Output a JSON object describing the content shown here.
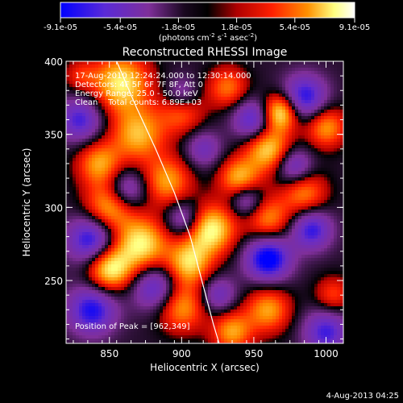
{
  "chart_data": {
    "type": "heatmap",
    "title": "Reconstructed RHESSI Image",
    "xlabel": "Heliocentric X (arcsec)",
    "ylabel": "Heliocentric Y (arcsec)",
    "xlim": [
      820,
      1012
    ],
    "ylim": [
      207,
      400
    ],
    "x_ticks": [
      850,
      900,
      950,
      1000
    ],
    "y_ticks": [
      250,
      300,
      350,
      400
    ],
    "colorbar": {
      "min": -9.1e-05,
      "max": 9.1e-05,
      "tick_labels": [
        "-9.1e-05",
        "-5.4e-05",
        "-1.8e-05",
        "1.8e-05",
        "5.4e-05",
        "9.1e-05"
      ],
      "units_label": "(photons cm",
      "units_sup1": "-2",
      "units_mid": " s",
      "units_sup2": "-1",
      "units_end": " asec",
      "units_sup3": "-2",
      "units_close": ")"
    },
    "colormap": [
      "#0000ff",
      "#6a2dc6",
      "#7f2f9a",
      "#000000",
      "#b00000",
      "#ff2000",
      "#ff9000",
      "#ffff80",
      "#ffffff"
    ],
    "sources": [
      {
        "x": 858,
        "y": 385,
        "value": 8e-05,
        "sigma": 14
      },
      {
        "x": 870,
        "y": 350,
        "value": 6.5e-05,
        "sigma": 13
      },
      {
        "x": 843,
        "y": 330,
        "value": 6e-05,
        "sigma": 11
      },
      {
        "x": 890,
        "y": 318,
        "value": 6e-05,
        "sigma": 12
      },
      {
        "x": 850,
        "y": 300,
        "value": 7e-05,
        "sigma": 12
      },
      {
        "x": 872,
        "y": 275,
        "value": 8e-05,
        "sigma": 13
      },
      {
        "x": 850,
        "y": 258,
        "value": 8.5e-05,
        "sigma": 11
      },
      {
        "x": 905,
        "y": 262,
        "value": 7e-05,
        "sigma": 11
      },
      {
        "x": 920,
        "y": 285,
        "value": 8.5e-05,
        "sigma": 12
      },
      {
        "x": 940,
        "y": 320,
        "value": 6.5e-05,
        "sigma": 10
      },
      {
        "x": 960,
        "y": 340,
        "value": 7.5e-05,
        "sigma": 11
      },
      {
        "x": 968,
        "y": 365,
        "value": 9e-05,
        "sigma": 9
      },
      {
        "x": 932,
        "y": 382,
        "value": 5e-05,
        "sigma": 10
      },
      {
        "x": 900,
        "y": 232,
        "value": 6e-05,
        "sigma": 12
      },
      {
        "x": 960,
        "y": 292,
        "value": 5.5e-05,
        "sigma": 11
      },
      {
        "x": 1000,
        "y": 355,
        "value": 6e-05,
        "sigma": 10
      },
      {
        "x": 985,
        "y": 310,
        "value": 5.5e-05,
        "sigma": 11
      },
      {
        "x": 960,
        "y": 230,
        "value": 6e-05,
        "sigma": 11
      },
      {
        "x": 935,
        "y": 215,
        "value": 6e-05,
        "sigma": 10
      },
      {
        "x": 1005,
        "y": 240,
        "value": 4e-05,
        "sigma": 9
      },
      {
        "x": 900,
        "y": 365,
        "value": 4.5e-05,
        "sigma": 11
      },
      {
        "x": 830,
        "y": 390,
        "value": 3e-05,
        "sigma": 8
      },
      {
        "x": 830,
        "y": 360,
        "value": -6e-05,
        "sigma": 11
      },
      {
        "x": 862,
        "y": 312,
        "value": -5.5e-05,
        "sigma": 10
      },
      {
        "x": 838,
        "y": 278,
        "value": -7.5e-05,
        "sigma": 12
      },
      {
        "x": 838,
        "y": 230,
        "value": -7e-05,
        "sigma": 12
      },
      {
        "x": 882,
        "y": 245,
        "value": -6e-05,
        "sigma": 11
      },
      {
        "x": 902,
        "y": 292,
        "value": -5e-05,
        "sigma": 9
      },
      {
        "x": 900,
        "y": 378,
        "value": -4e-05,
        "sigma": 8
      },
      {
        "x": 915,
        "y": 340,
        "value": -4e-05,
        "sigma": 9
      },
      {
        "x": 950,
        "y": 360,
        "value": -6.5e-05,
        "sigma": 10
      },
      {
        "x": 985,
        "y": 375,
        "value": -7e-05,
        "sigma": 11
      },
      {
        "x": 978,
        "y": 328,
        "value": -5.5e-05,
        "sigma": 9
      },
      {
        "x": 945,
        "y": 305,
        "value": -5e-05,
        "sigma": 8
      },
      {
        "x": 960,
        "y": 265,
        "value": -8.5e-05,
        "sigma": 11
      },
      {
        "x": 990,
        "y": 285,
        "value": -6.5e-05,
        "sigma": 10
      },
      {
        "x": 1000,
        "y": 215,
        "value": -6e-05,
        "sigma": 11
      },
      {
        "x": 925,
        "y": 240,
        "value": -4.5e-05,
        "sigma": 9
      }
    ],
    "limb_curve": [
      [
        855,
        400
      ],
      [
        868,
        370
      ],
      [
        882,
        340
      ],
      [
        895,
        310
      ],
      [
        906,
        280
      ],
      [
        914,
        250
      ],
      [
        922,
        220
      ],
      [
        926,
        207
      ]
    ],
    "annotations": {
      "line1": "17-Aug-2010 12:24:24.000 to 12:30:14.000",
      "line2": "Detectors: 4F 5F 6F 7F 8F, Att 0",
      "line3": "Energy Range: 25.0 - 50.0 keV",
      "line4": "Clean    Total counts: 6.89E+03",
      "peak": "Position of Peak = [962,349]"
    },
    "footer_date": "4-Aug-2013 04:25"
  }
}
